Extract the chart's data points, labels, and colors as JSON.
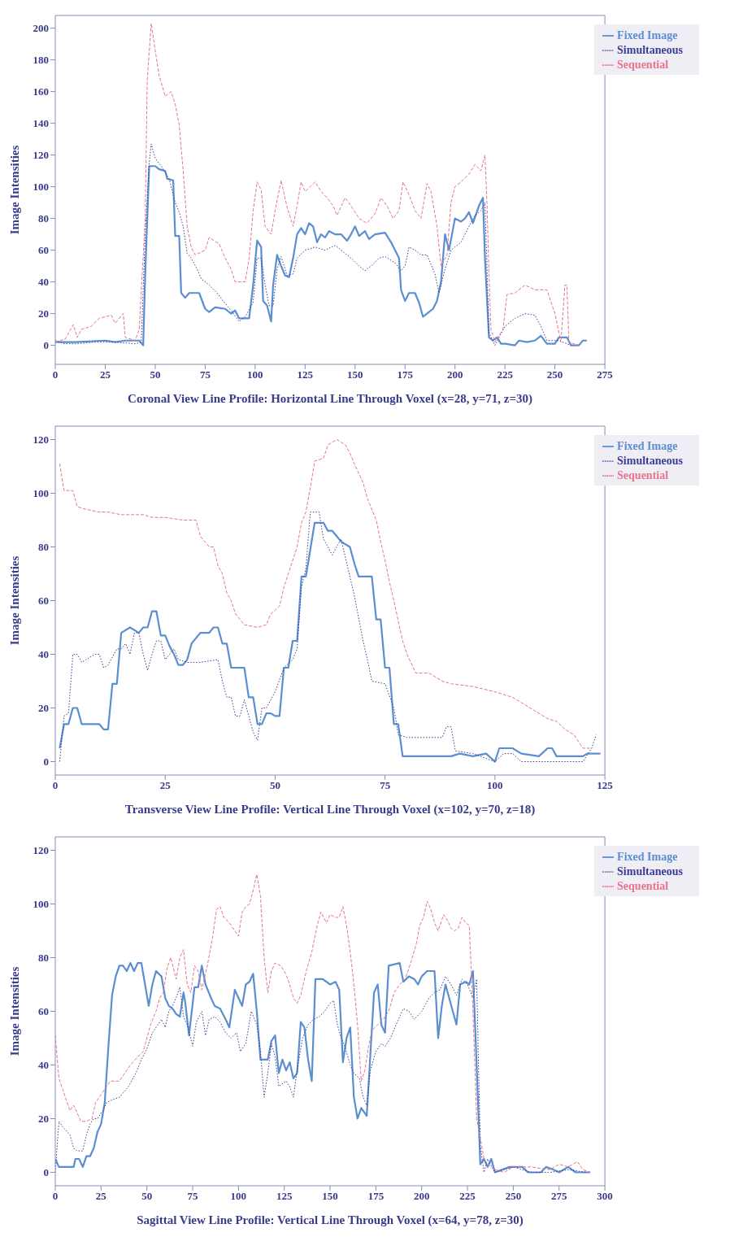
{
  "chart_data": [
    {
      "type": "line",
      "xlabel": "Coronal View Line Profile: Horizontal Line Through Voxel (x=28, y=71, z=30)",
      "ylabel": "Image Intensities",
      "xlim": [
        0,
        275
      ],
      "xticks": [
        0,
        25,
        50,
        75,
        100,
        125,
        150,
        175,
        200,
        225,
        250,
        275
      ],
      "ylim": [
        -12,
        208
      ],
      "yticks": [
        0,
        20,
        40,
        60,
        80,
        100,
        120,
        140,
        160,
        180,
        200
      ],
      "legend": "top right",
      "series": [
        {
          "name": "Fixed Image",
          "color": "#5b8ed1",
          "line_style": "solid",
          "x": [
            0,
            10,
            25,
            30,
            35,
            42,
            44,
            45,
            47,
            50,
            52,
            55,
            56,
            59,
            60,
            62,
            63,
            65,
            67,
            72,
            75,
            77,
            80,
            85,
            88,
            90,
            92,
            97,
            99,
            101,
            103,
            104,
            106,
            108,
            109,
            111,
            113,
            115,
            117,
            119,
            121,
            123,
            125,
            127,
            129,
            131,
            133,
            135,
            137,
            140,
            143,
            146,
            148,
            150,
            152,
            155,
            157,
            160,
            165,
            168,
            170,
            172,
            173,
            175,
            177,
            180,
            182,
            184,
            186,
            189,
            191,
            193,
            195,
            197,
            200,
            203,
            205,
            207,
            209,
            212,
            214,
            215,
            217,
            219,
            221,
            223,
            225,
            230,
            232,
            236,
            240,
            243,
            246,
            250,
            252,
            256,
            258,
            262,
            264,
            266
          ],
          "values": [
            2,
            2,
            3,
            2,
            3,
            3,
            0,
            45,
            113,
            113,
            111,
            110,
            105,
            104,
            69,
            69,
            33,
            30,
            33,
            33,
            23,
            21,
            24,
            23,
            20,
            22,
            17,
            17,
            38,
            66,
            62,
            28,
            25,
            15,
            38,
            57,
            50,
            44,
            43,
            55,
            70,
            74,
            70,
            77,
            75,
            65,
            70,
            68,
            72,
            70,
            70,
            66,
            70,
            75,
            69,
            72,
            67,
            70,
            71,
            65,
            60,
            55,
            35,
            28,
            33,
            33,
            27,
            18,
            20,
            23,
            28,
            40,
            70,
            60,
            80,
            78,
            80,
            84,
            77,
            88,
            93,
            55,
            5,
            3,
            5,
            1,
            1,
            0,
            3,
            2,
            3,
            6,
            1,
            1,
            5,
            5,
            0,
            0,
            3,
            3
          ]
        },
        {
          "name": "Simultaneous",
          "color": "#3c3c96",
          "line_style": "dotted",
          "x": [
            0,
            5,
            10,
            20,
            30,
            40,
            43,
            45,
            47,
            48,
            50,
            53,
            57,
            60,
            62,
            64,
            66,
            68,
            71,
            73,
            77,
            81,
            84,
            88,
            92,
            95,
            99,
            101,
            103,
            105,
            107,
            109,
            111,
            113,
            116,
            119,
            121,
            125,
            130,
            135,
            140,
            145,
            148,
            152,
            155,
            158,
            162,
            165,
            170,
            173,
            175,
            177,
            180,
            183,
            186,
            190,
            192,
            195,
            198,
            200,
            203,
            207,
            210,
            213,
            215,
            217,
            220,
            225,
            230,
            235,
            240,
            243,
            246,
            252,
            258
          ],
          "values": [
            3,
            1,
            1,
            2,
            2,
            1,
            2,
            70,
            115,
            127,
            118,
            113,
            105,
            90,
            84,
            75,
            58,
            55,
            48,
            42,
            38,
            33,
            28,
            22,
            15,
            18,
            27,
            55,
            55,
            38,
            25,
            25,
            48,
            56,
            44,
            45,
            55,
            60,
            62,
            60,
            63,
            58,
            55,
            50,
            47,
            50,
            55,
            56,
            52,
            47,
            50,
            62,
            60,
            57,
            57,
            45,
            33,
            48,
            60,
            62,
            65,
            75,
            82,
            85,
            90,
            8,
            0,
            12,
            17,
            20,
            19,
            12,
            3,
            3,
            0
          ]
        },
        {
          "name": "Sequential",
          "color": "#e8738f",
          "line_style": "dashed",
          "x": [
            0,
            5,
            9,
            11,
            13,
            18,
            22,
            28,
            30,
            34,
            35,
            40,
            42,
            45,
            46,
            48,
            50,
            52,
            55,
            58,
            60,
            62,
            64,
            66,
            68,
            70,
            75,
            77,
            82,
            85,
            88,
            90,
            95,
            97,
            99,
            101,
            103,
            105,
            108,
            110,
            113,
            116,
            119,
            121,
            123,
            125,
            130,
            133,
            136,
            139,
            141,
            145,
            148,
            152,
            156,
            160,
            163,
            166,
            169,
            172,
            174,
            177,
            180,
            183,
            186,
            188,
            191,
            193,
            196,
            198,
            200,
            203,
            207,
            210,
            213,
            215,
            216,
            217,
            218,
            220,
            224,
            226,
            230,
            235,
            240,
            246,
            250,
            253,
            255,
            256,
            257,
            262
          ],
          "values": [
            2,
            4,
            13,
            5,
            10,
            12,
            17,
            19,
            14,
            20,
            5,
            3,
            10,
            80,
            167,
            203,
            186,
            170,
            157,
            160,
            152,
            139,
            110,
            75,
            62,
            57,
            60,
            68,
            64,
            55,
            48,
            40,
            40,
            55,
            85,
            103,
            98,
            75,
            70,
            85,
            104,
            87,
            75,
            88,
            103,
            97,
            103,
            97,
            93,
            88,
            82,
            93,
            88,
            80,
            77,
            83,
            93,
            88,
            80,
            85,
            103,
            95,
            85,
            80,
            102,
            97,
            75,
            50,
            57,
            90,
            100,
            103,
            108,
            114,
            110,
            120,
            90,
            45,
            10,
            2,
            10,
            32,
            33,
            38,
            35,
            35,
            20,
            2,
            38,
            38,
            2,
            0
          ]
        }
      ]
    },
    {
      "type": "line",
      "xlabel": "Transverse View Line Profile: Vertical Line Through Voxel (x=102, y=70, z=18)",
      "ylabel": "Image Intensities",
      "xlim": [
        0,
        125
      ],
      "xticks": [
        0,
        25,
        50,
        75,
        100,
        125
      ],
      "ylim": [
        -5,
        125
      ],
      "yticks": [
        0,
        20,
        40,
        60,
        80,
        100,
        120
      ],
      "legend": "top right",
      "series": [
        {
          "name": "Fixed Image",
          "color": "#5b8ed1",
          "line_style": "solid",
          "x": [
            1,
            2,
            3,
            4,
            5,
            6,
            10,
            11,
            12,
            13,
            14,
            15,
            17,
            19,
            20,
            21,
            22,
            23,
            24,
            25,
            26,
            27,
            28,
            29,
            30,
            31,
            33,
            35,
            36,
            37,
            38,
            39,
            40,
            43,
            44,
            45,
            46,
            47,
            48,
            49,
            50,
            51,
            52,
            53,
            54,
            55,
            56,
            57,
            59,
            61,
            62,
            63,
            64,
            65,
            66,
            67,
            68,
            69,
            72,
            73,
            74,
            75,
            76,
            77,
            78,
            79,
            90,
            92,
            95,
            98,
            100,
            101,
            104,
            106,
            110,
            112,
            113,
            114,
            120,
            121,
            124
          ],
          "values": [
            5,
            14,
            14,
            20,
            20,
            14,
            14,
            12,
            12,
            29,
            29,
            48,
            50,
            48,
            50,
            50,
            56,
            56,
            47,
            47,
            43,
            40,
            36,
            36,
            38,
            44,
            48,
            48,
            50,
            50,
            44,
            44,
            35,
            35,
            24,
            24,
            14,
            14,
            18,
            18,
            17,
            17,
            35,
            35,
            45,
            45,
            69,
            69,
            89,
            89,
            86,
            86,
            84,
            82,
            81,
            80,
            74,
            69,
            69,
            53,
            53,
            35,
            35,
            14,
            14,
            2,
            2,
            3,
            2,
            3,
            0,
            5,
            5,
            3,
            2,
            5,
            5,
            2,
            2,
            3,
            3
          ]
        },
        {
          "name": "Simultaneous",
          "color": "#3c3c96",
          "line_style": "dotted",
          "x": [
            1,
            2,
            3,
            4,
            5,
            6,
            7,
            9,
            10,
            11,
            12,
            14,
            15,
            16,
            17,
            18,
            19,
            20,
            21,
            22,
            23,
            24,
            25,
            26,
            27,
            28,
            30,
            33,
            37,
            38,
            39,
            40,
            41,
            42,
            43,
            45,
            46,
            47,
            48,
            50,
            52,
            54,
            55,
            56,
            57,
            58,
            60,
            61,
            62,
            63,
            64,
            65,
            66,
            68,
            70,
            71,
            72,
            75,
            77,
            78,
            80,
            88,
            89,
            90,
            91,
            95,
            100,
            102,
            104,
            106,
            110,
            120,
            122,
            123
          ],
          "values": [
            0,
            17,
            18,
            40,
            40,
            37,
            38,
            40,
            40,
            35,
            36,
            42,
            42,
            44,
            40,
            48,
            48,
            40,
            34,
            40,
            45,
            45,
            38,
            40,
            42,
            38,
            37,
            37,
            38,
            30,
            24,
            24,
            17,
            17,
            23,
            11,
            8,
            20,
            20,
            26,
            35,
            38,
            42,
            65,
            72,
            93,
            93,
            83,
            80,
            77,
            80,
            83,
            76,
            62,
            45,
            38,
            30,
            29,
            20,
            10,
            9,
            9,
            13,
            13,
            4,
            3,
            0,
            3,
            3,
            0,
            0,
            0,
            5,
            10
          ]
        },
        {
          "name": "Sequential",
          "color": "#e8738f",
          "line_style": "dashed",
          "x": [
            1,
            2,
            4,
            5,
            7,
            10,
            12,
            15,
            20,
            22,
            25,
            29,
            32,
            33,
            35,
            36,
            37,
            38,
            39,
            40,
            41,
            43,
            46,
            48,
            49,
            51,
            52,
            53,
            55,
            56,
            57,
            58,
            59,
            61,
            62,
            64,
            66,
            67,
            68,
            70,
            71,
            73,
            74,
            75,
            76,
            77,
            79,
            80,
            82,
            85,
            88,
            90,
            95,
            100,
            104,
            106,
            109,
            112,
            114,
            116,
            118,
            120,
            122
          ],
          "values": [
            111,
            101,
            101,
            95,
            94,
            93,
            93,
            92,
            92,
            91,
            91,
            90,
            90,
            84,
            80,
            80,
            73,
            70,
            63,
            60,
            55,
            51,
            50,
            51,
            55,
            58,
            65,
            70,
            80,
            89,
            93,
            102,
            112,
            113,
            118,
            120,
            118,
            115,
            111,
            104,
            98,
            90,
            82,
            75,
            67,
            60,
            45,
            40,
            33,
            33,
            30,
            29,
            28,
            26,
            24,
            22,
            19,
            16,
            15,
            12,
            10,
            5,
            5
          ]
        }
      ]
    },
    {
      "type": "line",
      "xlabel": "Sagittal View Line Profile: Vertical Line Through Voxel (x=64, y=78, z=30)",
      "ylabel": "Image Intensities",
      "xlim": [
        0,
        300
      ],
      "xticks": [
        0,
        25,
        50,
        75,
        100,
        125,
        150,
        175,
        200,
        225,
        250,
        275,
        300
      ],
      "ylim": [
        -5,
        125
      ],
      "yticks": [
        0,
        20,
        40,
        60,
        80,
        100,
        120
      ],
      "legend": "top right",
      "series": [
        {
          "name": "Fixed Image",
          "color": "#5b8ed1",
          "line_style": "solid",
          "x": [
            0,
            2,
            10,
            11,
            13,
            15,
            17,
            19,
            21,
            23,
            25,
            27,
            29,
            31,
            33,
            35,
            37,
            39,
            41,
            43,
            45,
            47,
            49,
            51,
            53,
            55,
            58,
            60,
            62,
            64,
            66,
            68,
            70,
            71,
            73,
            76,
            78,
            80,
            82,
            85,
            87,
            90,
            93,
            95,
            98,
            100,
            102,
            104,
            106,
            108,
            110,
            112,
            116,
            118,
            120,
            122,
            124,
            126,
            128,
            130,
            132,
            134,
            136,
            138,
            140,
            142,
            146,
            150,
            153,
            155,
            157,
            159,
            161,
            163,
            165,
            167,
            170,
            172,
            174,
            176,
            178,
            180,
            182,
            188,
            190,
            193,
            196,
            198,
            200,
            203,
            207,
            209,
            211,
            213,
            215,
            217,
            219,
            221,
            224,
            226,
            228,
            230,
            232,
            234,
            236,
            238,
            240,
            248,
            255,
            258,
            265,
            268,
            272,
            275,
            280,
            284,
            292
          ],
          "values": [
            5,
            2,
            2,
            5,
            5,
            2,
            6,
            6,
            9,
            15,
            18,
            26,
            47,
            66,
            73,
            77,
            77,
            75,
            78,
            75,
            78,
            78,
            70,
            62,
            70,
            75,
            73,
            65,
            62,
            61,
            59,
            58,
            67,
            63,
            51,
            69,
            69,
            77,
            70,
            65,
            62,
            61,
            57,
            54,
            68,
            65,
            62,
            70,
            71,
            74,
            60,
            42,
            42,
            49,
            51,
            37,
            42,
            38,
            41,
            35,
            37,
            56,
            54,
            42,
            34,
            72,
            72,
            70,
            71,
            68,
            41,
            50,
            54,
            28,
            20,
            24,
            21,
            44,
            67,
            70,
            55,
            52,
            77,
            78,
            71,
            73,
            72,
            70,
            73,
            75,
            75,
            50,
            62,
            70,
            65,
            60,
            55,
            70,
            71,
            70,
            75,
            40,
            3,
            5,
            2,
            5,
            0,
            2,
            2,
            0,
            0,
            2,
            1,
            0,
            2,
            0,
            0
          ]
        },
        {
          "name": "Simultaneous",
          "color": "#3c3c96",
          "line_style": "dotted",
          "x": [
            0,
            2,
            4,
            8,
            10,
            12,
            15,
            17,
            19,
            21,
            23,
            26,
            28,
            31,
            35,
            40,
            44,
            47,
            50,
            53,
            56,
            58,
            60,
            62,
            64,
            66,
            68,
            70,
            72,
            75,
            77,
            80,
            82,
            84,
            87,
            90,
            93,
            96,
            99,
            101,
            104,
            107,
            110,
            112,
            114,
            116,
            118,
            120,
            122,
            126,
            128,
            130,
            132,
            135,
            138,
            141,
            144,
            147,
            150,
            152,
            154,
            156,
            158,
            161,
            163,
            166,
            168,
            170,
            172,
            175,
            178,
            180,
            183,
            186,
            190,
            193,
            196,
            200,
            204,
            207,
            210,
            213,
            216,
            219,
            222,
            225,
            228,
            230,
            232,
            234,
            236,
            240,
            250,
            260,
            270,
            280,
            290
          ],
          "values": [
            0,
            19,
            17,
            14,
            9,
            8,
            8,
            14,
            18,
            20,
            20,
            23,
            26,
            27,
            28,
            32,
            37,
            42,
            46,
            52,
            55,
            57,
            54,
            60,
            62,
            65,
            69,
            58,
            55,
            47,
            56,
            60,
            51,
            57,
            58,
            56,
            52,
            50,
            52,
            45,
            48,
            60,
            55,
            45,
            28,
            37,
            48,
            43,
            32,
            34,
            32,
            28,
            38,
            50,
            55,
            57,
            58,
            60,
            63,
            64,
            55,
            50,
            47,
            40,
            37,
            35,
            28,
            25,
            38,
            45,
            48,
            47,
            50,
            55,
            61,
            60,
            57,
            60,
            65,
            67,
            68,
            73,
            70,
            66,
            72,
            70,
            65,
            72,
            10,
            0,
            5,
            0,
            2,
            0,
            0,
            1,
            0
          ]
        },
        {
          "name": "Sequential",
          "color": "#e8738f",
          "line_style": "dashed",
          "x": [
            0,
            2,
            4,
            6,
            8,
            10,
            12,
            14,
            17,
            20,
            22,
            25,
            28,
            30,
            35,
            38,
            41,
            45,
            48,
            50,
            52,
            55,
            57,
            59,
            61,
            63,
            66,
            68,
            70,
            72,
            74,
            76,
            78,
            80,
            83,
            86,
            88,
            90,
            92,
            95,
            98,
            100,
            102,
            104,
            106,
            108,
            110,
            112,
            114,
            116,
            118,
            120,
            123,
            125,
            127,
            130,
            132,
            134,
            137,
            140,
            143,
            145,
            148,
            150,
            153,
            155,
            157,
            159,
            161,
            163,
            165,
            167,
            169,
            171,
            173,
            176,
            179,
            182,
            185,
            188,
            191,
            194,
            197,
            199,
            201,
            203,
            205,
            207,
            209,
            212,
            214,
            216,
            218,
            220,
            222,
            224,
            226,
            228,
            230,
            232,
            234,
            236,
            240,
            245,
            250,
            260,
            270,
            275,
            280,
            285,
            288,
            292
          ],
          "values": [
            51,
            35,
            31,
            27,
            23,
            25,
            22,
            19,
            19,
            20,
            26,
            29,
            32,
            34,
            34,
            37,
            40,
            43,
            45,
            50,
            55,
            60,
            65,
            67,
            76,
            80,
            72,
            80,
            83,
            70,
            67,
            77,
            75,
            68,
            77,
            88,
            98,
            99,
            95,
            93,
            90,
            88,
            97,
            99,
            100,
            105,
            111,
            103,
            80,
            67,
            75,
            78,
            77,
            75,
            72,
            65,
            63,
            66,
            75,
            82,
            92,
            97,
            93,
            96,
            95,
            95,
            99,
            92,
            82,
            70,
            55,
            34,
            38,
            47,
            53,
            55,
            57,
            60,
            67,
            70,
            72,
            78,
            85,
            92,
            95,
            101,
            98,
            93,
            90,
            96,
            94,
            91,
            90,
            91,
            95,
            93,
            92,
            60,
            20,
            13,
            5,
            3,
            1,
            0,
            2,
            2,
            1,
            3,
            2,
            4,
            1,
            0
          ]
        }
      ]
    }
  ]
}
